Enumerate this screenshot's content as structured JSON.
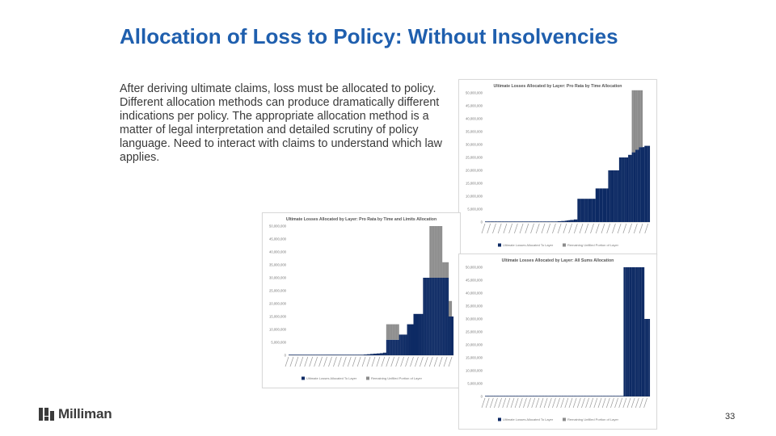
{
  "slide": {
    "title": "Allocation of Loss to Policy: Without Insolvencies",
    "body": "After deriving ultimate claims, loss must be allocated to policy. Different allocation methods can produce dramatically different indications per policy.  The appropriate allocation method is a matter of legal interpretation and detailed scrutiny of policy language. Need to interact with claims to understand which law applies.",
    "page_number": "33",
    "logo_text": "Milliman"
  },
  "colors": {
    "title": "#1f5fae",
    "allocated": "#0d2a64",
    "remaining": "#8c8c8c"
  },
  "chart_data": [
    {
      "id": "chart-pro-rata-time",
      "type": "bar",
      "stacked": true,
      "title": "Ultimate Losses Allocated by Layer: Pro Rata by Time Allocation",
      "ylim": [
        0,
        50000000
      ],
      "yticks": [
        "50,000,000",
        "45,000,000",
        "40,000,000",
        "35,000,000",
        "30,000,000",
        "25,000,000",
        "20,000,000",
        "15,000,000",
        "10,000,000",
        "5,000,000",
        "0"
      ],
      "series_names": [
        "Ultimate Losses Allocated To Layer",
        "Remaining Unfilled Portion of Layer"
      ],
      "allocated": [
        0,
        0,
        0,
        0,
        0,
        0,
        0,
        0,
        0,
        0,
        0,
        0,
        0,
        0,
        0,
        0,
        0,
        0,
        0,
        0,
        0,
        0,
        0,
        0,
        0,
        0,
        0,
        0,
        0,
        0,
        0,
        0,
        0,
        0,
        0,
        100000,
        150000,
        200000,
        200000,
        200000,
        300000,
        300000,
        400000,
        400000,
        500000,
        600000,
        700000,
        800000,
        800000,
        1000000,
        1000000,
        9000000,
        9000000,
        9000000,
        9000000,
        9000000,
        9000000,
        9000000,
        9000000,
        9000000,
        9000000,
        13000000,
        13000000,
        13000000,
        13000000,
        13000000,
        13000000,
        13000000,
        20000000,
        20000000,
        20000000,
        20000000,
        20000000,
        20000000,
        25000000,
        25000000,
        25000000,
        25000000,
        25000000,
        26000000,
        26000000,
        27000000,
        27000000,
        28000000,
        28000000,
        29000000,
        29000000,
        29000000,
        29500000,
        29500000,
        29500000
      ],
      "remaining": [
        0,
        0,
        0,
        0,
        0,
        0,
        0,
        0,
        0,
        0,
        0,
        0,
        0,
        0,
        0,
        0,
        0,
        0,
        0,
        0,
        0,
        0,
        0,
        0,
        0,
        0,
        0,
        0,
        0,
        0,
        0,
        0,
        0,
        0,
        0,
        0,
        0,
        0,
        0,
        0,
        0,
        0,
        0,
        0,
        0,
        0,
        0,
        0,
        0,
        0,
        0,
        0,
        0,
        0,
        0,
        0,
        0,
        0,
        0,
        0,
        0,
        0,
        0,
        0,
        0,
        0,
        0,
        0,
        0,
        0,
        0,
        0,
        0,
        0,
        0,
        0,
        0,
        0,
        0,
        0,
        0,
        24000000,
        24000000,
        23000000,
        23000000,
        22000000,
        22000000,
        0,
        0,
        0,
        0,
        0,
        0
      ]
    },
    {
      "id": "chart-pro-rata-time-limits",
      "type": "bar",
      "stacked": true,
      "title": "Ultimate Losses Allocated by Layer: Pro Rata by Time and Limits Allocation",
      "ylim": [
        0,
        50000000
      ],
      "yticks": [
        "50,000,000",
        "45,000,000",
        "40,000,000",
        "35,000,000",
        "30,000,000",
        "25,000,000",
        "20,000,000",
        "15,000,000",
        "10,000,000",
        "5,000,000",
        "0"
      ],
      "series_names": [
        "Ultimate Losses Allocated To Layer",
        "Remaining Unfilled Portion of Layer"
      ],
      "allocated": [
        0,
        0,
        0,
        0,
        0,
        0,
        0,
        0,
        0,
        0,
        0,
        0,
        0,
        0,
        0,
        0,
        0,
        0,
        0,
        0,
        0,
        0,
        0,
        0,
        0,
        0,
        0,
        0,
        0,
        0,
        0,
        0,
        0,
        0,
        0,
        0,
        0,
        0,
        0,
        0,
        0,
        0,
        100000,
        150000,
        200000,
        200000,
        200000,
        300000,
        300000,
        400000,
        400000,
        500000,
        500000,
        600000,
        600000,
        700000,
        700000,
        800000,
        800000,
        1000000,
        1000000,
        6000000,
        6000000,
        6000000,
        6000000,
        6000000,
        6000000,
        6000000,
        6000000,
        8000000,
        8000000,
        8000000,
        8000000,
        8000000,
        12000000,
        12000000,
        12000000,
        12000000,
        16000000,
        16000000,
        16000000,
        16000000,
        16000000,
        16000000,
        30000000,
        30000000,
        30000000,
        30000000,
        30000000,
        30000000,
        30000000,
        30000000,
        30000000,
        30000000,
        30000000,
        30000000,
        30000000,
        30000000,
        30000000,
        30000000,
        15000000,
        15000000,
        15000000
      ],
      "remaining": [
        0,
        0,
        0,
        0,
        0,
        0,
        0,
        0,
        0,
        0,
        0,
        0,
        0,
        0,
        0,
        0,
        0,
        0,
        0,
        0,
        0,
        0,
        0,
        0,
        0,
        0,
        0,
        0,
        0,
        0,
        0,
        0,
        0,
        0,
        0,
        0,
        0,
        0,
        0,
        0,
        0,
        0,
        0,
        0,
        0,
        0,
        0,
        0,
        0,
        0,
        0,
        0,
        0,
        0,
        0,
        0,
        0,
        0,
        0,
        0,
        0,
        6000000,
        6000000,
        6000000,
        6000000,
        6000000,
        6000000,
        6000000,
        6000000,
        0,
        0,
        0,
        0,
        0,
        0,
        0,
        0,
        0,
        0,
        0,
        0,
        0,
        0,
        0,
        0,
        0,
        0,
        0,
        20000000,
        20000000,
        20000000,
        20000000,
        20000000,
        20000000,
        20000000,
        20000000,
        6000000,
        6000000,
        6000000,
        6000000,
        6000000,
        6000000
      ]
    },
    {
      "id": "chart-all-sums",
      "type": "bar",
      "stacked": true,
      "title": "Ultimate Losses Allocated by Layer: All Sums Allocation",
      "ylim": [
        0,
        50000000
      ],
      "yticks": [
        "50,000,000",
        "45,000,000",
        "40,000,000",
        "35,000,000",
        "30,000,000",
        "25,000,000",
        "20,000,000",
        "15,000,000",
        "10,000,000",
        "5,000,000",
        "0"
      ],
      "series_names": [
        "Ultimate Losses Allocated To Layer",
        "Remaining Unfilled Portion of Layer"
      ],
      "allocated": [
        0,
        0,
        0,
        0,
        0,
        0,
        0,
        0,
        0,
        0,
        0,
        0,
        0,
        0,
        0,
        0,
        0,
        0,
        0,
        0,
        0,
        0,
        0,
        0,
        0,
        0,
        0,
        0,
        0,
        0,
        0,
        0,
        0,
        0,
        0,
        0,
        0,
        0,
        0,
        0,
        0,
        0,
        0,
        0,
        0,
        0,
        0,
        0,
        0,
        0,
        0,
        0,
        0,
        0,
        0,
        0,
        0,
        0,
        0,
        0,
        0,
        0,
        0,
        0,
        0,
        0,
        0,
        0,
        0,
        0,
        0,
        0,
        0,
        0,
        0,
        0,
        0,
        0,
        0,
        0,
        0,
        0,
        0,
        0,
        0,
        0,
        0,
        0,
        0,
        0,
        0,
        0,
        0,
        0,
        0,
        0,
        0,
        0,
        0,
        0,
        50000000,
        50000000,
        50000000,
        50000000,
        50000000,
        50000000,
        50000000,
        50000000,
        50000000,
        50000000,
        50000000,
        50000000,
        50000000,
        50000000,
        50000000,
        30000000,
        30000000,
        30000000,
        30000000
      ],
      "remaining": [
        0,
        0,
        0,
        0,
        0,
        0,
        0,
        0,
        0,
        0,
        0,
        0,
        0,
        0,
        0,
        0,
        0,
        0,
        0,
        0,
        0,
        0,
        0,
        0,
        0,
        0,
        0,
        0,
        0,
        0,
        0,
        0,
        0,
        0,
        0,
        0,
        0,
        0,
        0,
        0,
        0,
        0,
        0,
        0,
        0,
        0,
        0,
        0,
        0,
        0,
        0,
        0,
        0,
        0,
        0,
        0,
        0,
        0,
        0,
        0,
        0,
        0,
        0,
        0,
        0,
        0,
        0,
        0,
        0,
        0,
        0,
        0,
        0,
        0,
        0,
        0,
        0,
        0,
        0,
        0,
        0,
        0,
        0,
        0,
        0,
        0,
        0,
        0,
        0,
        0,
        0,
        0,
        0,
        0,
        0,
        0,
        0,
        0,
        0,
        0,
        0,
        0,
        0,
        0,
        0,
        0,
        0,
        0,
        0,
        0,
        0,
        0,
        0,
        0,
        0,
        0,
        0,
        0,
        0
      ]
    }
  ]
}
